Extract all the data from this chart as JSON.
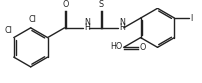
{
  "bg_color": "#ffffff",
  "line_color": "#222222",
  "line_width": 1.0,
  "font_size": 5.8,
  "fig_width": 2.02,
  "fig_height": 0.83,
  "dpi": 100,
  "xlim": [
    0,
    10.2
  ],
  "ylim": [
    -1.6,
    2.0
  ]
}
